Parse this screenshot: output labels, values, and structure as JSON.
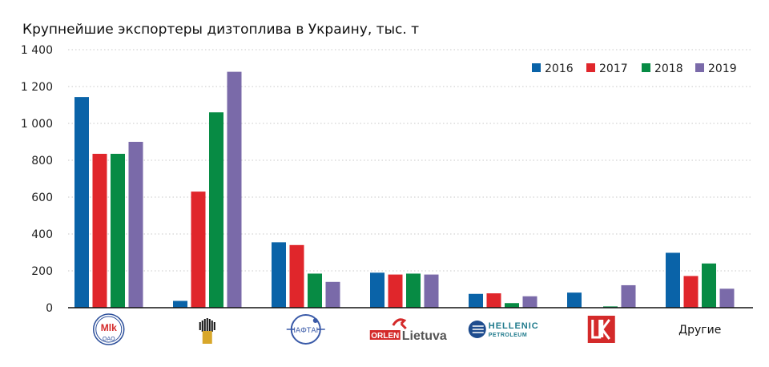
{
  "chart_data": {
    "type": "bar",
    "title": "Крупнейшие экспортеры дизтоплива в Украину, тыс. т",
    "xlabel": "",
    "ylabel": "",
    "ylim": [
      0,
      1400
    ],
    "yticks": [
      0,
      200,
      400,
      600,
      800,
      1000,
      1200,
      1400
    ],
    "ytick_labels": [
      "0",
      "200",
      "400",
      "600",
      "800",
      "1 000",
      "1 200",
      "1 400"
    ],
    "grid": true,
    "legend_position": "top-right",
    "categories": [
      "Мозырский НПЗ (ОАО)",
      "Роснефть",
      "Нафтан",
      "ORLEN Lietuva",
      "Hellenic Petroleum",
      "Лукойл",
      "Другие"
    ],
    "category_logos": [
      {
        "kind": "mozyr",
        "text": "ОАО"
      },
      {
        "kind": "rosneft"
      },
      {
        "kind": "naftan"
      },
      {
        "kind": "orlen",
        "text1": "ORLEN",
        "text2": "Lietuva"
      },
      {
        "kind": "hellenic",
        "text1": "HELLENIC",
        "text2": "PETROLEUM"
      },
      {
        "kind": "lukoil"
      },
      {
        "kind": "text",
        "text": "Другие"
      }
    ],
    "series": [
      {
        "name": "2016",
        "color": "#0a63a8",
        "values": [
          1143,
          37,
          355,
          190,
          75,
          82,
          298
        ]
      },
      {
        "name": "2017",
        "color": "#e0262b",
        "values": [
          835,
          630,
          340,
          180,
          78,
          2,
          172
        ]
      },
      {
        "name": "2018",
        "color": "#078b44",
        "values": [
          835,
          1060,
          185,
          185,
          25,
          7,
          240
        ]
      },
      {
        "name": "2019",
        "color": "#7a6aa9",
        "values": [
          900,
          1280,
          140,
          180,
          62,
          122,
          103
        ]
      }
    ]
  }
}
